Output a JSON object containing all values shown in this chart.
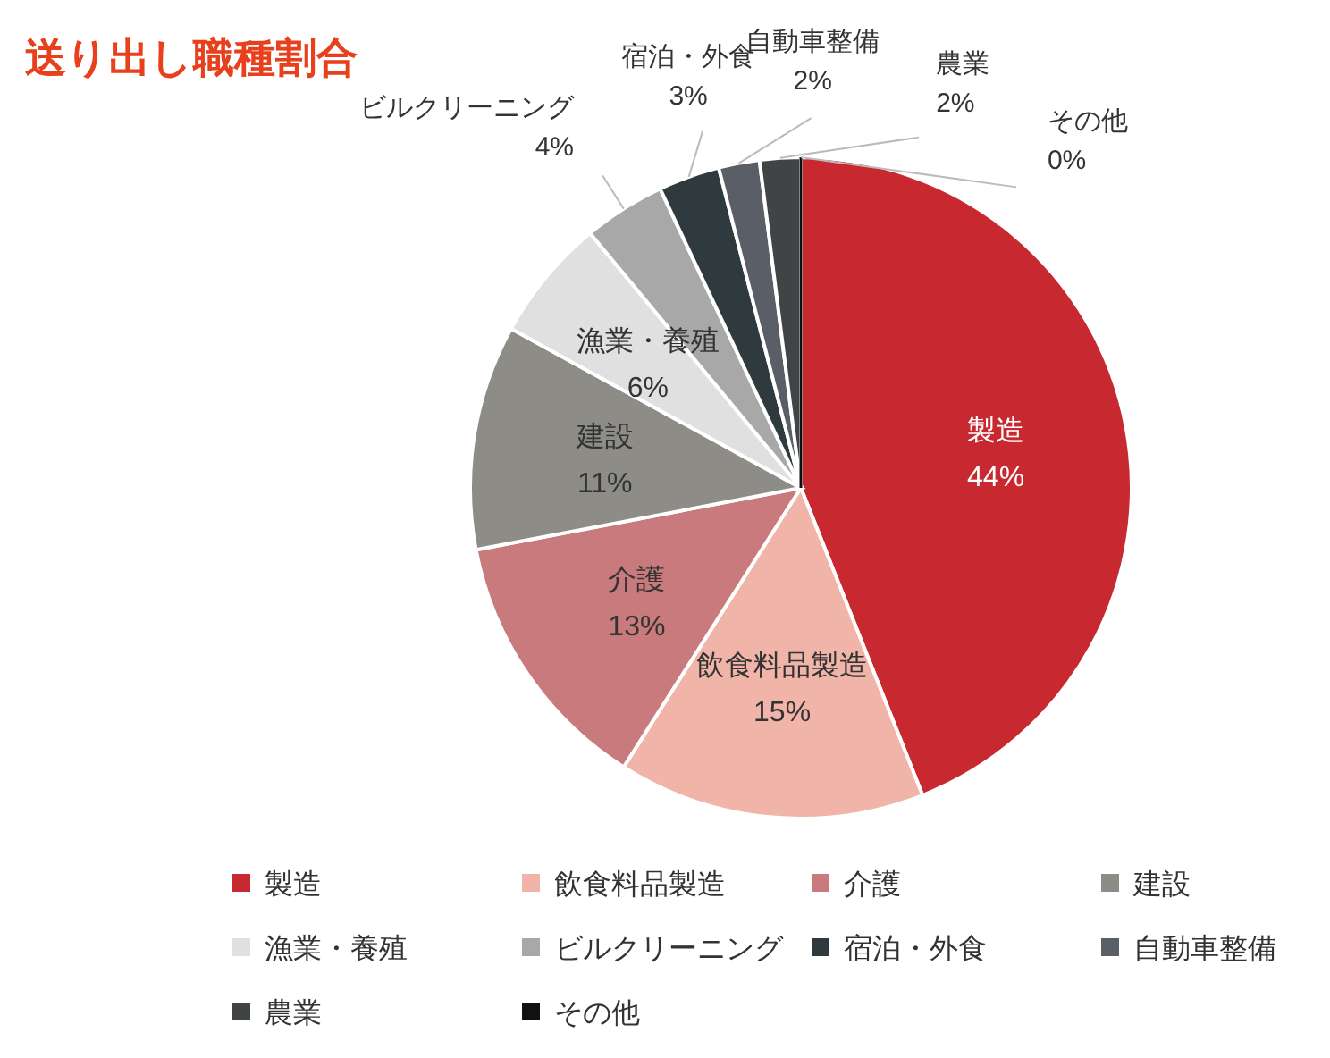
{
  "chart_data": {
    "type": "pie",
    "title": "送り出し職種割合",
    "categories": [
      "製造",
      "飲食料品製造",
      "介護",
      "建設",
      "漁業・養殖",
      "ビルクリーニング",
      "宿泊・外食",
      "自動車整備",
      "農業",
      "その他"
    ],
    "values": [
      44,
      15,
      13,
      11,
      6,
      4,
      3,
      2,
      2,
      0
    ],
    "value_labels": [
      "44%",
      "15%",
      "13%",
      "11%",
      "6%",
      "4%",
      "3%",
      "2%",
      "2%",
      "0%"
    ],
    "colors": [
      "#c8282f",
      "#f0b4a8",
      "#c97a7d",
      "#8e8c87",
      "#e0e0e0",
      "#a8a8a8",
      "#2f3a3e",
      "#5a5e66",
      "#404444",
      "#111111"
    ],
    "legend": "bottom"
  }
}
